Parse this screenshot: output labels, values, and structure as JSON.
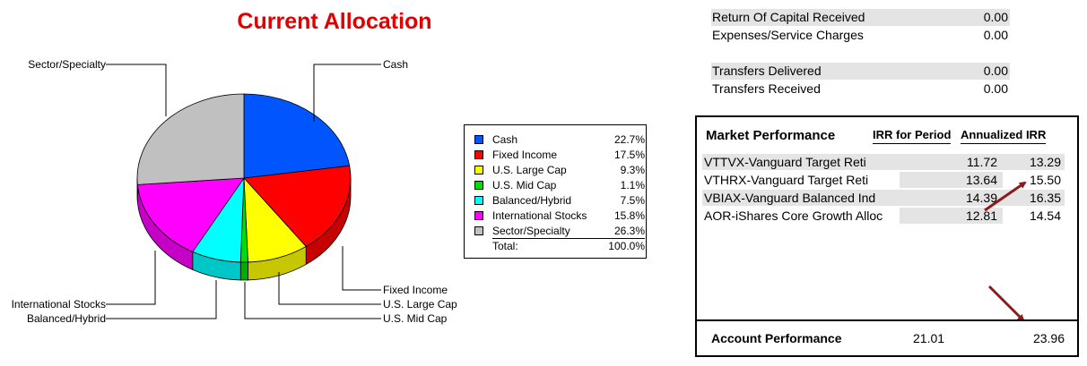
{
  "chart_data": {
    "type": "pie",
    "title": "Current Allocation",
    "slices": [
      {
        "label": "Cash",
        "value": 22.7,
        "display": "22.7%",
        "color": "#0055ff"
      },
      {
        "label": "Fixed Income",
        "value": 17.5,
        "display": "17.5%",
        "color": "#ff0000"
      },
      {
        "label": "U.S. Large Cap",
        "value": 9.3,
        "display": "9.3%",
        "color": "#ffff00"
      },
      {
        "label": "U.S. Mid Cap",
        "value": 1.1,
        "display": "1.1%",
        "color": "#00dd00"
      },
      {
        "label": "Balanced/Hybrid",
        "value": 7.5,
        "display": "7.5%",
        "color": "#00ffff"
      },
      {
        "label": "International Stocks",
        "value": 15.8,
        "display": "15.8%",
        "color": "#ff00ff"
      },
      {
        "label": "Sector/Specialty",
        "value": 26.3,
        "display": "26.3%",
        "color": "#c0c0c0"
      }
    ],
    "total_label": "Total:",
    "total_value": "100.0%",
    "legend_placement": "right"
  },
  "summary": {
    "rows": [
      {
        "label": "Return Of Capital Received",
        "value": "0.00",
        "shaded": true
      },
      {
        "label": "Expenses/Service Charges",
        "value": "0.00",
        "shaded": false
      },
      {
        "label": "Transfers Delivered",
        "value": "0.00",
        "shaded": true
      },
      {
        "label": "Transfers Received",
        "value": "0.00",
        "shaded": false
      }
    ]
  },
  "performance": {
    "title": "Market Performance",
    "col_irr": "IRR for Period",
    "col_ann": "Annualized IRR",
    "rows": [
      {
        "name": "VTTVX-Vanguard Target Reti",
        "irr": "11.72",
        "annualized": "13.29",
        "shaded": true
      },
      {
        "name": "VTHRX-Vanguard Target Reti",
        "irr": "13.64",
        "annualized": "15.50",
        "shaded": false
      },
      {
        "name": "VBIAX-Vanguard Balanced Ind",
        "irr": "14.39",
        "annualized": "16.35",
        "shaded": true
      },
      {
        "name": "AOR-iShares Core Growth Alloc",
        "irr": "12.81",
        "annualized": "14.54",
        "shaded": false
      }
    ],
    "account": {
      "label": "Account Performance",
      "irr": "21.01",
      "annualized": "23.96"
    },
    "arrow_color": "#8b1a1a"
  }
}
